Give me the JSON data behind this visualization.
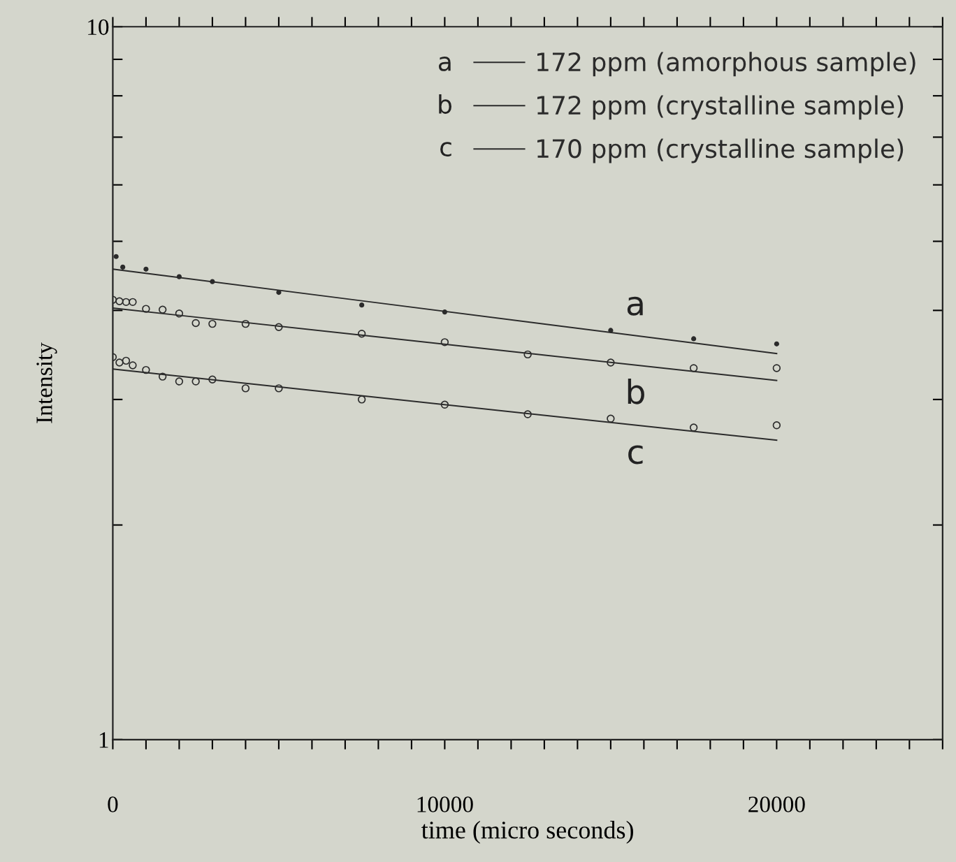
{
  "chart_data": {
    "type": "scatter",
    "xlabel": "time (micro seconds)",
    "ylabel": "Intensity",
    "log": "y",
    "grid": false,
    "legend": "top right",
    "xlim": [
      0,
      25000
    ],
    "ylim": [
      1,
      10
    ],
    "xticks": [
      0,
      {
        "value": 1000,
        "label": null
      },
      {
        "value": 2000,
        "label": null
      },
      {
        "value": 3000,
        "label": null
      },
      {
        "value": 4000,
        "label": null
      },
      {
        "value": 5000,
        "label": null
      },
      {
        "value": 6000,
        "label": null
      },
      {
        "value": 7000,
        "label": null
      },
      {
        "value": 8000,
        "label": null
      },
      {
        "value": 9000,
        "label": null
      },
      10000,
      {
        "value": 11000,
        "label": null
      },
      {
        "value": 12000,
        "label": null
      },
      {
        "value": 13000,
        "label": null
      },
      {
        "value": 14000,
        "label": null
      },
      {
        "value": 15000,
        "label": null
      },
      {
        "value": 16000,
        "label": null
      },
      {
        "value": 17000,
        "label": null
      },
      {
        "value": 18000,
        "label": null
      },
      {
        "value": 19000,
        "label": null
      },
      20000,
      {
        "value": 21000,
        "label": null
      },
      {
        "value": 22000,
        "label": null
      },
      {
        "value": 23000,
        "label": null
      },
      {
        "value": 24000,
        "label": null
      },
      {
        "value": 25000,
        "label": null
      }
    ],
    "yticks": [
      1,
      {
        "value": 2,
        "label": null
      },
      {
        "value": 3,
        "label": null
      },
      {
        "value": 4,
        "label": null
      },
      {
        "value": 5,
        "label": null
      },
      {
        "value": 6,
        "label": null
      },
      {
        "value": 7,
        "label": null
      },
      {
        "value": 8,
        "label": null
      },
      {
        "value": 9,
        "label": null
      },
      10
    ],
    "series": [
      {
        "marker": "circle",
        "color": "#2b2b2b",
        "x": [
          100,
          300,
          1000,
          2000,
          3000,
          5000,
          7500,
          10000,
          15000,
          17500,
          20000
        ],
        "values": [
          4.76,
          4.6,
          4.57,
          4.46,
          4.39,
          4.24,
          4.07,
          3.98,
          3.75,
          3.65,
          3.59
        ]
      },
      {
        "marker": "circle",
        "color": "#2b2b2b",
        "x": [
          0,
          200,
          400,
          600,
          1000,
          1500,
          2000,
          2500,
          3000,
          4000,
          5000,
          7500,
          10000,
          12500,
          15000,
          17500,
          20000
        ],
        "values": [
          4.14,
          4.12,
          4.11,
          4.11,
          4.02,
          4.01,
          3.96,
          3.84,
          3.83,
          3.83,
          3.79,
          3.71,
          3.61,
          3.47,
          3.38,
          3.32,
          3.32
        ]
      },
      {
        "marker": "circle",
        "color": "#2b2b2b",
        "x": [
          0,
          200,
          400,
          600,
          1000,
          1500,
          2000,
          2500,
          3000,
          4000,
          5000,
          7500,
          10000,
          12500,
          15000,
          17500,
          20000
        ],
        "values": [
          3.44,
          3.38,
          3.4,
          3.35,
          3.3,
          3.23,
          3.18,
          3.18,
          3.2,
          3.11,
          3.11,
          3.0,
          2.95,
          2.86,
          2.82,
          2.74,
          2.76
        ]
      },
      {
        "name": "172 ppm (amorphous sample)",
        "type": "line",
        "marker": "none",
        "line_style": "solid",
        "color": "#2b2b2b",
        "x": [
          0,
          20000
        ],
        "values": [
          4.57,
          3.48
        ]
      },
      {
        "name": "172 ppm (crystalline sample)",
        "type": "line",
        "marker": "none",
        "line_style": "solid",
        "color": "#2b2b2b",
        "x": [
          0,
          20000
        ],
        "values": [
          4.03,
          3.19
        ]
      },
      {
        "name": "170 ppm (crystalline sample)",
        "type": "line",
        "marker": "none",
        "line_style": "solid",
        "color": "#2b2b2b",
        "x": [
          0,
          20000
        ],
        "values": [
          3.31,
          2.63
        ]
      }
    ],
    "annotations": [
      "a",
      "b",
      "c",
      "a",
      "b",
      "c"
    ]
  }
}
